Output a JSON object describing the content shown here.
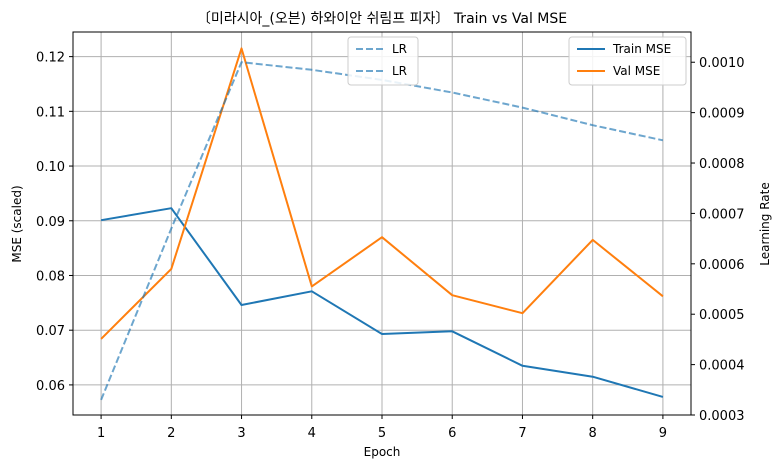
{
  "chart_data": {
    "type": "line",
    "title": "〔미라시아_(오븐) 하와이안 쉬림프 피자〕 Train vs Val MSE",
    "xlabel": "Epoch",
    "ylabel": "MSE (scaled)",
    "y2label": "Learning Rate",
    "x": [
      1,
      2,
      3,
      4,
      5,
      6,
      7,
      8,
      9
    ],
    "xticks": [
      "1",
      "2",
      "3",
      "4",
      "5",
      "6",
      "7",
      "8",
      "9"
    ],
    "ylim": [
      0.0545,
      0.1245
    ],
    "yticks": [
      "0.06",
      "0.07",
      "0.08",
      "0.09",
      "0.10",
      "0.11",
      "0.12"
    ],
    "y2lim": [
      0.0003,
      0.00106
    ],
    "y2ticks": [
      "0.0003",
      "0.0004",
      "0.0005",
      "0.0006",
      "0.0007",
      "0.0008",
      "0.0009",
      "0.0010"
    ],
    "grid": true,
    "series": [
      {
        "name": "Train MSE",
        "axis": "left",
        "color": "#1f77b4",
        "style": "solid",
        "values": [
          0.0901,
          0.0923,
          0.0746,
          0.0771,
          0.0693,
          0.0698,
          0.0635,
          0.0615,
          0.0578
        ]
      },
      {
        "name": "Val MSE",
        "axis": "left",
        "color": "#ff7f0e",
        "style": "solid",
        "values": [
          0.0684,
          0.0812,
          0.1215,
          0.078,
          0.087,
          0.0764,
          0.0731,
          0.0865,
          0.0762
        ]
      },
      {
        "name": "LR",
        "axis": "right",
        "color": "#1f77b4",
        "style": "dashed",
        "alpha": 0.65,
        "values": [
          0.00033,
          0.00067,
          0.001,
          0.000985,
          0.000965,
          0.00094,
          0.00091,
          0.000875,
          0.000845
        ]
      }
    ],
    "legend_left": {
      "placement": "upper center",
      "entries": [
        "LR",
        "LR"
      ]
    },
    "legend_right": {
      "placement": "upper right",
      "entries": [
        "Train MSE",
        "Val MSE"
      ]
    }
  }
}
